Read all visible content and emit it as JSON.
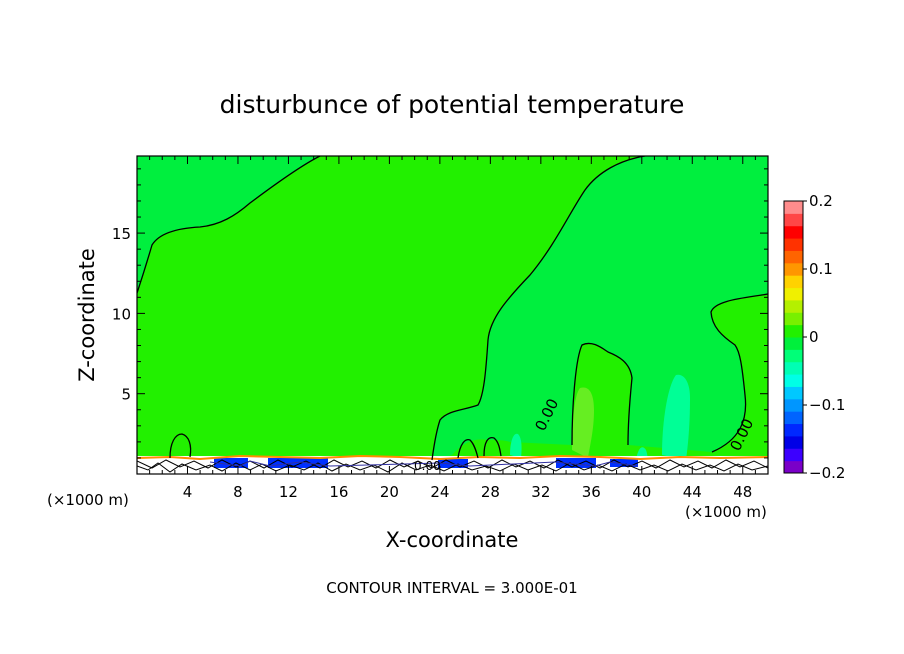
{
  "chart_data": {
    "type": "contour",
    "title": "disturbunce of potential temperature",
    "xlabel": "X-coordinate",
    "ylabel": "Z-coordinate",
    "x_units": "(×1000 m)",
    "x_units_right": "(×1000 m)",
    "xlim": [
      0,
      50
    ],
    "ylim": [
      0,
      19.8
    ],
    "x_ticks": [
      4,
      8,
      12,
      16,
      20,
      24,
      28,
      32,
      36,
      40,
      44,
      48
    ],
    "y_ticks": [
      5,
      10,
      15
    ],
    "x_tick_labels": [
      "4",
      "8",
      "12",
      "16",
      "20",
      "24",
      "28",
      "32",
      "36",
      "40",
      "44",
      "48"
    ],
    "y_tick_labels": [
      "5",
      "10",
      "15"
    ],
    "contour_labels": [
      "0.00",
      "0.00",
      "0.00"
    ],
    "footer": "CONTOUR INTERVAL = 3.000E-01",
    "colorbar": {
      "range": [
        -0.2,
        0.2
      ],
      "tick_values": [
        0.2,
        0.1,
        0,
        -0.1,
        -0.2
      ],
      "tick_labels": [
        "0.2",
        "0.1",
        "0",
        "−0.1",
        "−0.2"
      ],
      "colors": [
        "#7a00c8",
        "#3c00ff",
        "#0000e6",
        "#0028ff",
        "#0064ff",
        "#0096ff",
        "#00c8ff",
        "#00ffe6",
        "#00ffb4",
        "#00ff78",
        "#00f03c",
        "#22f000",
        "#78f000",
        "#b4f000",
        "#f0f000",
        "#ffd200",
        "#ff9600",
        "#ff6400",
        "#ff3200",
        "#ff0000",
        "#ff4646",
        "#ff8c8c"
      ]
    },
    "fill_colors": {
      "low": "#22f000",
      "upper_region": "#00ef3e",
      "pale_patch": "#66ee22",
      "cyan_patch": "#00ff96",
      "surface_blue": "#0030ff",
      "surface_orange": "#ff8c00"
    }
  }
}
